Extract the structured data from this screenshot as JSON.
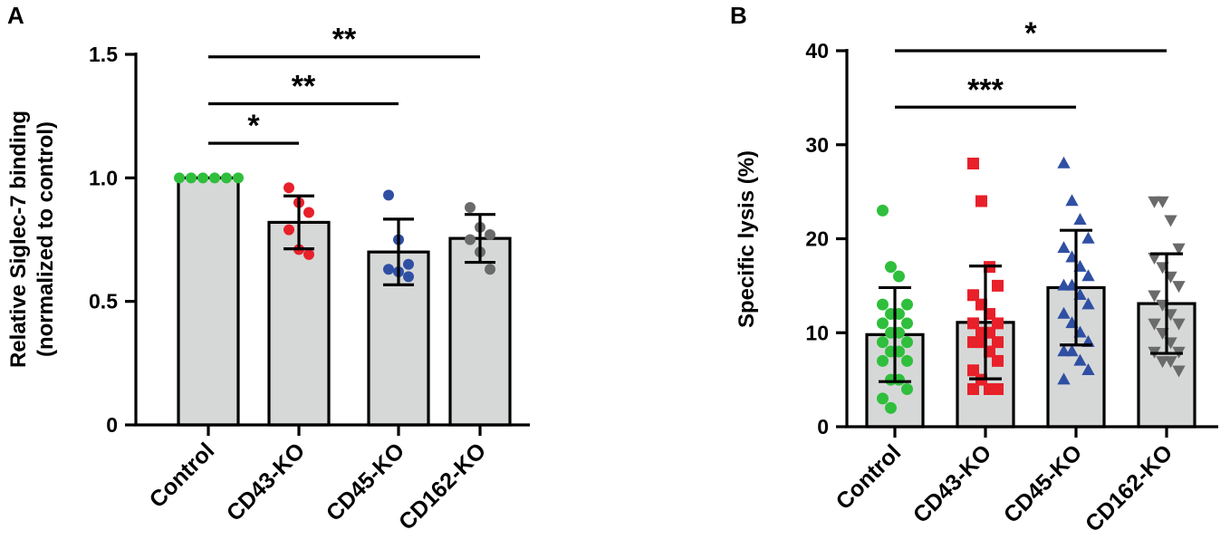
{
  "figure": {
    "colors": {
      "bar_fill": "#d6d8d8",
      "axis": "#000000",
      "green": "#2fbf3c",
      "red": "#e8202a",
      "blue": "#2f4fa3",
      "gray": "#6a6a6a"
    }
  },
  "chart_data": [
    {
      "panel_label": "A",
      "type": "bar",
      "categories": [
        "Control",
        "CD43-KO",
        "CD45-KO",
        "CD162-KO"
      ],
      "values": [
        1.0,
        0.82,
        0.7,
        0.755
      ],
      "sd": [
        0.0,
        0.107,
        0.133,
        0.097
      ],
      "ylabel_line1": "Relative Siglec-7 binding",
      "ylabel_line2": "(normalized to control)",
      "ylim": [
        0,
        1.5
      ],
      "yticks": [
        0,
        0.5,
        1.0,
        1.5
      ],
      "ytick_labels": [
        "0",
        "0.5",
        "1.0",
        "1.5"
      ],
      "point_colors": [
        "green",
        "red",
        "blue",
        "gray"
      ],
      "point_markers": [
        "circle",
        "circle",
        "circle",
        "circle"
      ],
      "points": [
        [
          1.0,
          1.0,
          1.0,
          1.0,
          1.0,
          1.0
        ],
        [
          0.96,
          0.9,
          0.86,
          0.79,
          0.71,
          0.69
        ],
        [
          0.93,
          0.75,
          0.65,
          0.63,
          0.62,
          0.6
        ],
        [
          0.88,
          0.8,
          0.77,
          0.75,
          0.7,
          0.63
        ]
      ],
      "significance": [
        {
          "from": 0,
          "to": 1,
          "label": "*",
          "y": 1.14
        },
        {
          "from": 0,
          "to": 2,
          "label": "**",
          "y": 1.3
        },
        {
          "from": 0,
          "to": 3,
          "label": "**",
          "y": 1.49
        }
      ]
    },
    {
      "panel_label": "B",
      "type": "bar",
      "categories": [
        "Control",
        "CD43-KO",
        "CD45-KO",
        "CD162-KO"
      ],
      "values": [
        9.8,
        11.1,
        14.8,
        13.1
      ],
      "sd": [
        5.0,
        6.0,
        6.1,
        5.3
      ],
      "ylabel_line1": "Specific lysis (%)",
      "ylabel_line2": "",
      "ylim": [
        0,
        40
      ],
      "yticks": [
        0,
        10,
        20,
        30,
        40
      ],
      "ytick_labels": [
        "0",
        "10",
        "20",
        "30",
        "40"
      ],
      "point_colors": [
        "green",
        "red",
        "blue",
        "gray"
      ],
      "point_markers": [
        "circle",
        "square",
        "triangle-up",
        "triangle-down"
      ],
      "points": [
        [
          23,
          17,
          16,
          13,
          13,
          12,
          12,
          11,
          11,
          10,
          10,
          9,
          9,
          8,
          8,
          7,
          7,
          5,
          5,
          4,
          3,
          2
        ],
        [
          28,
          24,
          17,
          15,
          14,
          13,
          12,
          11,
          11,
          10,
          10,
          9,
          9,
          9,
          8,
          7,
          6,
          5,
          4,
          4,
          4
        ],
        [
          28,
          24,
          22,
          20,
          19,
          18,
          17,
          16,
          15,
          15,
          14,
          13,
          12,
          11,
          10,
          9,
          8,
          8,
          7,
          6,
          5
        ],
        [
          24,
          24,
          22,
          19,
          18,
          17,
          16,
          15,
          14,
          13,
          12,
          11,
          11,
          10,
          9,
          8,
          8,
          7,
          7,
          6
        ]
      ],
      "significance": [
        {
          "from": 0,
          "to": 2,
          "label": "***",
          "y": 34
        },
        {
          "from": 0,
          "to": 3,
          "label": "*",
          "y": 40
        }
      ]
    }
  ]
}
